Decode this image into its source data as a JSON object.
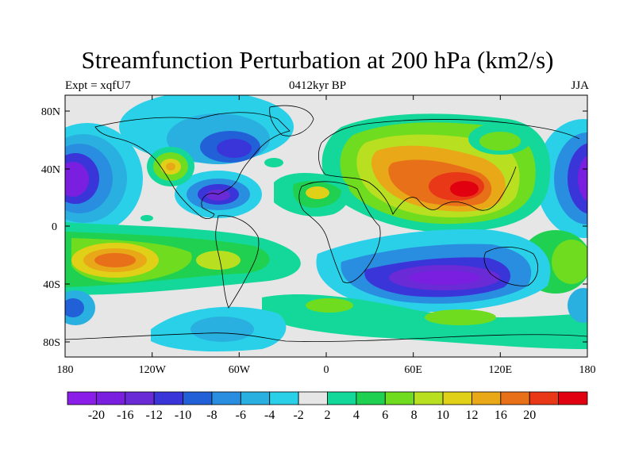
{
  "title": "Streamfunction Perturbation at 200 hPa (km2/s)",
  "left_label": "Expt = xqfU7",
  "center_label": "0412kyr BP",
  "right_label": "JJA",
  "colors": {
    "levels": [
      "#8a1ee8",
      "#7a1fe0",
      "#6a2ad6",
      "#3a35d8",
      "#2260d8",
      "#2a8ee0",
      "#2ab0e0",
      "#2ad0e8",
      "#e6e6e6",
      "#14d89a",
      "#20d050",
      "#70dc20",
      "#b8e020",
      "#e0d018",
      "#e8a818",
      "#e87018",
      "#e83818",
      "#e00010"
    ],
    "coast": "#000000"
  },
  "chart_data": {
    "type": "map",
    "colorbar_labels": [
      "-20",
      "-16",
      "-12",
      "-10",
      "-8",
      "-6",
      "-4",
      "-2",
      "2",
      "4",
      "6",
      "8",
      "10",
      "12",
      "16",
      "20"
    ],
    "x_ticks": [
      "180",
      "120W",
      "60W",
      "0",
      "60E",
      "120E",
      "180"
    ],
    "y_ticks": [
      "80N",
      "40N",
      "0",
      "40S",
      "80S"
    ],
    "x_range": [
      -180,
      180
    ],
    "y_range": [
      -90,
      90
    ]
  }
}
